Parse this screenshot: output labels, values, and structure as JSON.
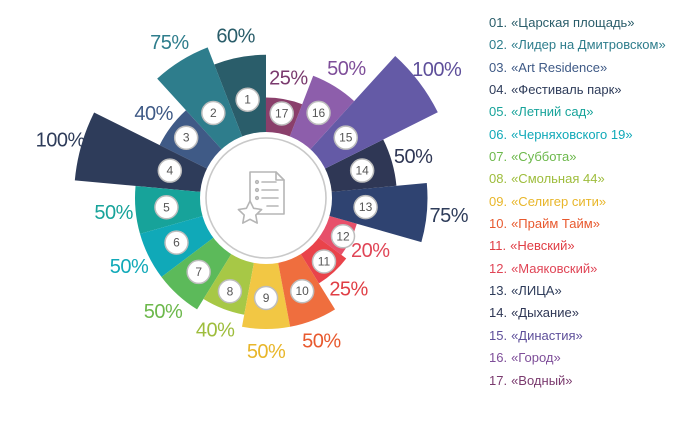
{
  "chart_data": {
    "type": "polar-bar",
    "unit": "%",
    "segments": [
      {
        "id": "1",
        "value": 60,
        "label_text": "60%",
        "name": "«Царская площадь»",
        "legend_num": "01.",
        "color": "#2a5d6a",
        "label_color": "#2a5d6a"
      },
      {
        "id": "2",
        "value": 75,
        "label_text": "75%",
        "name": "«Лидер на Дмитровском»",
        "legend_num": "02.",
        "color": "#2e7d8c",
        "label_color": "#2e7d8c"
      },
      {
        "id": "3",
        "value": 40,
        "label_text": "40%",
        "name": "«Art Residence»",
        "legend_num": "03.",
        "color": "#3f5a86",
        "label_color": "#3f5a86"
      },
      {
        "id": "4",
        "value": 100,
        "label_text": "100%",
        "name": "«Фестиваль парк»",
        "legend_num": "04.",
        "color": "#2e3c5a",
        "label_color": "#2e3c5a"
      },
      {
        "id": "5",
        "value": 50,
        "label_text": "50%",
        "name": "«Летний сад»",
        "legend_num": "05.",
        "color": "#17a39a",
        "label_color": "#17a39a"
      },
      {
        "id": "6",
        "value": 50,
        "label_text": "50%",
        "name": "«Черняховского 19»",
        "legend_num": "06.",
        "color": "#10a9b8",
        "label_color": "#10a9b8"
      },
      {
        "id": "7",
        "value": 50,
        "label_text": "50%",
        "name": "«Суббота»",
        "legend_num": "07.",
        "color": "#5cba5a",
        "label_color": "#6cb84b"
      },
      {
        "id": "8",
        "value": 40,
        "label_text": "40%",
        "name": "«Смольная 44»",
        "legend_num": "08.",
        "color": "#a7c846",
        "label_color": "#9ebd3c"
      },
      {
        "id": "9",
        "value": 50,
        "label_text": "50%",
        "name": "«Селигер сити»",
        "legend_num": "09.",
        "color": "#f2c744",
        "label_color": "#e8b62a"
      },
      {
        "id": "10",
        "value": 50,
        "label_text": "50%",
        "name": "«Прайм Тайм»",
        "legend_num": "10.",
        "color": "#ef6e3e",
        "label_color": "#e8592e"
      },
      {
        "id": "11",
        "value": 25,
        "label_text": "25%",
        "name": "«Невский»",
        "legend_num": "11.",
        "color": "#e9434a",
        "label_color": "#e03e45"
      },
      {
        "id": "12",
        "value": 20,
        "label_text": "20%",
        "name": "«Маяковский»",
        "legend_num": "12.",
        "color": "#e7506a",
        "label_color": "#e04556"
      },
      {
        "id": "13",
        "value": 75,
        "label_text": "75%",
        "name": "«ЛИЦА»",
        "legend_num": "13.",
        "color": "#2f4371",
        "label_color": "#2e3c5a"
      },
      {
        "id": "14",
        "value": 50,
        "label_text": "50%",
        "name": "«Дыхание»",
        "legend_num": "14.",
        "color": "#2f3755",
        "label_color": "#2f3755"
      },
      {
        "id": "15",
        "value": 100,
        "label_text": "100%",
        "name": "«Династия»",
        "legend_num": "15.",
        "color": "#645aa6",
        "label_color": "#5e4f9a"
      },
      {
        "id": "16",
        "value": 50,
        "label_text": "50%",
        "name": "«Город»",
        "legend_num": "16.",
        "color": "#8d5eab",
        "label_color": "#7e4e99"
      },
      {
        "id": "17",
        "value": 25,
        "label_text": "25%",
        "name": "«Водный»",
        "legend_num": "17.",
        "color": "#8a3f6b",
        "label_color": "#7a3a6e"
      }
    ]
  },
  "center_icon": "document-star-icon"
}
